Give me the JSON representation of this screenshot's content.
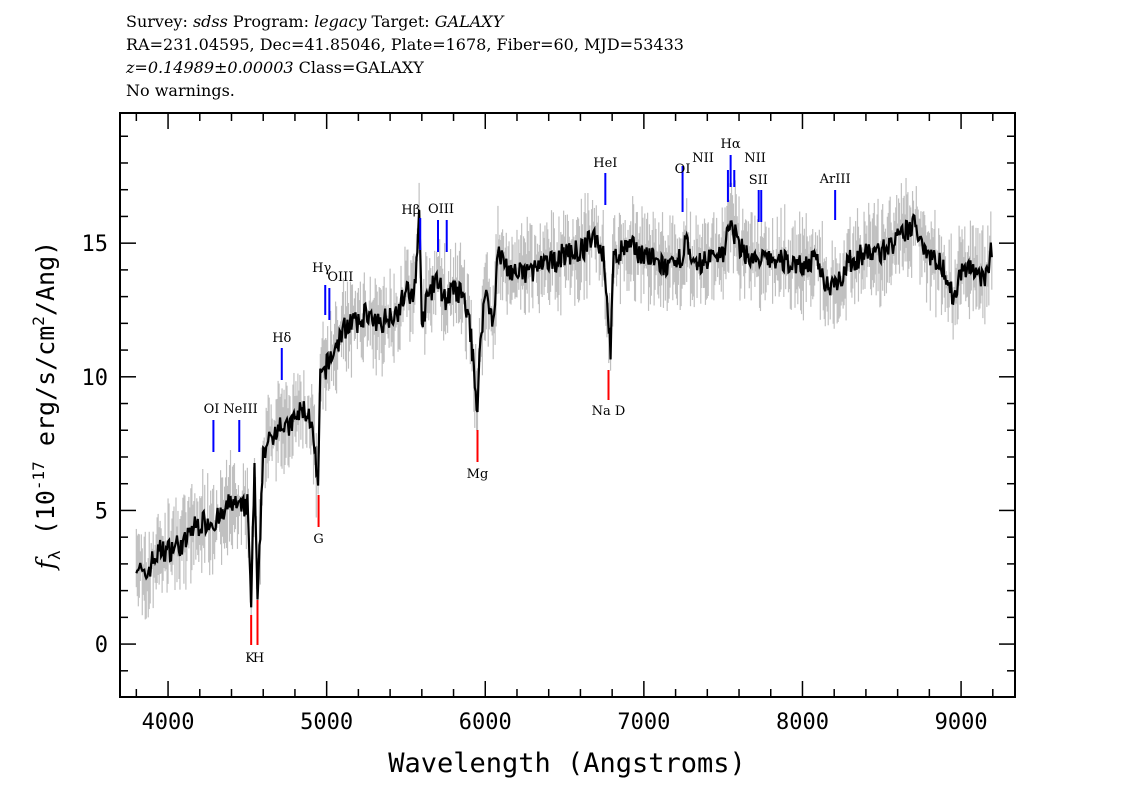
{
  "header": {
    "line1": {
      "survey_label": "Survey:",
      "survey": "sdss",
      "program_label": "Program:",
      "program": "legacy",
      "target_label": "Target:",
      "target": "GALAXY"
    },
    "line2": "RA=231.04595, Dec=41.85046, Plate=1678, Fiber=60, MJD=53433",
    "line3": {
      "z": "z=0.14989±0.00003",
      "class": "Class=GALAXY"
    },
    "line4": "No warnings."
  },
  "chart_data": {
    "type": "line",
    "xlabel": "Wavelength (Angstroms)",
    "ylabel": {
      "f": "f",
      "sub": "λ",
      "pre": " (10",
      "exp": "-17",
      "mid": " erg/s/cm",
      "exp2": "2",
      "post": "/Ang)"
    },
    "xlim": [
      3697,
      9340
    ],
    "ylim": [
      -1.98,
      19.87
    ],
    "x_ticks": [
      4000,
      5000,
      6000,
      7000,
      8000,
      9000
    ],
    "x_tick_labels": [
      "4000",
      "5000",
      "6000",
      "7000",
      "8000",
      "9000"
    ],
    "y_ticks": [
      0,
      5,
      10,
      15
    ],
    "y_tick_labels": [
      "0",
      "5",
      "10",
      "15"
    ],
    "grid": false,
    "colors": {
      "flux": "#000000",
      "error_band": "#c0c0c0",
      "emission": "#0000ff",
      "absorption": "#ff0000"
    },
    "error_approx": 0.9,
    "series": [
      {
        "x": [
          3800,
          3850,
          3900,
          3950,
          4000,
          4050,
          4100,
          4150,
          4200,
          4250,
          4300,
          4350,
          4400,
          4450,
          4500,
          4524,
          4545,
          4564,
          4600,
          4650,
          4700,
          4750,
          4800,
          4850,
          4900,
          4946,
          4960,
          5000,
          5050,
          5100,
          5150,
          5200,
          5250,
          5300,
          5350,
          5400,
          5450,
          5500,
          5550,
          5583,
          5600,
          5650,
          5700,
          5750,
          5800,
          5850,
          5900,
          5951,
          5970,
          6000,
          6050,
          6080,
          6150,
          6200,
          6300,
          6400,
          6500,
          6600,
          6700,
          6750,
          6790,
          6810,
          6900,
          7000,
          7100,
          7200,
          7270,
          7300,
          7400,
          7500,
          7547,
          7600,
          7700,
          7800,
          7900,
          8000,
          8100,
          8150,
          8200,
          8250,
          8300,
          8400,
          8500,
          8600,
          8700,
          8800,
          8900,
          8950,
          9000,
          9100,
          9150,
          9200
        ],
        "y": [
          3.1,
          2.4,
          3.1,
          3.5,
          3.5,
          3.7,
          3.7,
          4.3,
          4.5,
          4.6,
          4.6,
          4.8,
          5.4,
          5.0,
          5.2,
          1.6,
          6.5,
          1.3,
          7.3,
          7.6,
          8.4,
          8.0,
          8.4,
          8.8,
          8.4,
          5.9,
          9.9,
          10.4,
          11.0,
          11.7,
          12.1,
          11.9,
          12.5,
          11.9,
          12.1,
          12.3,
          12.5,
          13.2,
          12.9,
          16.0,
          12.1,
          13.2,
          13.6,
          12.9,
          13.2,
          13.1,
          12.1,
          8.8,
          11.4,
          13.2,
          12.1,
          14.6,
          14.0,
          13.8,
          14.0,
          14.2,
          14.6,
          14.7,
          15.3,
          14.4,
          11.0,
          14.4,
          14.9,
          14.6,
          14.2,
          14.0,
          15.1,
          14.0,
          14.4,
          14.7,
          15.7,
          14.9,
          14.3,
          14.4,
          14.3,
          14.2,
          14.3,
          13.4,
          13.6,
          13.8,
          14.3,
          14.6,
          14.7,
          15.1,
          15.7,
          14.6,
          14.0,
          12.9,
          14.0,
          14.0,
          13.4,
          15.1
        ]
      }
    ],
    "lines": [
      {
        "label": "OI",
        "wave": 4286,
        "kind": "emission"
      },
      {
        "label": "NeIII",
        "wave": 4449,
        "kind": "emission"
      },
      {
        "label": "Hδ",
        "wave": 4717,
        "kind": "emission"
      },
      {
        "label": "Hγ",
        "wave": 4991,
        "kind": "emission"
      },
      {
        "label": "OIII",
        "wave": 5017,
        "kind": "emission"
      },
      {
        "label": "Hβ",
        "wave": 5590,
        "kind": "emission"
      },
      {
        "label": "OIII",
        "wave": 5702,
        "kind": "emission"
      },
      {
        "label": "",
        "wave": 5757,
        "kind": "emission"
      },
      {
        "label": "HeI",
        "wave": 6757,
        "kind": "emission"
      },
      {
        "label": "OI",
        "wave": 7244,
        "kind": "emission"
      },
      {
        "label": "NII",
        "wave": 7530,
        "kind": "emission"
      },
      {
        "label": "Hα",
        "wave": 7547,
        "kind": "emission"
      },
      {
        "label": "NII",
        "wave": 7570,
        "kind": "emission"
      },
      {
        "label": "SII",
        "wave": 7724,
        "kind": "emission"
      },
      {
        "label": "",
        "wave": 7740,
        "kind": "emission"
      },
      {
        "label": "ArIII",
        "wave": 8206,
        "kind": "emission"
      },
      {
        "label": "K",
        "wave": 4524,
        "kind": "absorption"
      },
      {
        "label": "H",
        "wave": 4564,
        "kind": "absorption"
      },
      {
        "label": "G",
        "wave": 4949,
        "kind": "absorption"
      },
      {
        "label": "Mg",
        "wave": 5951,
        "kind": "absorption"
      },
      {
        "label": "Na D",
        "wave": 6777,
        "kind": "absorption"
      }
    ]
  }
}
